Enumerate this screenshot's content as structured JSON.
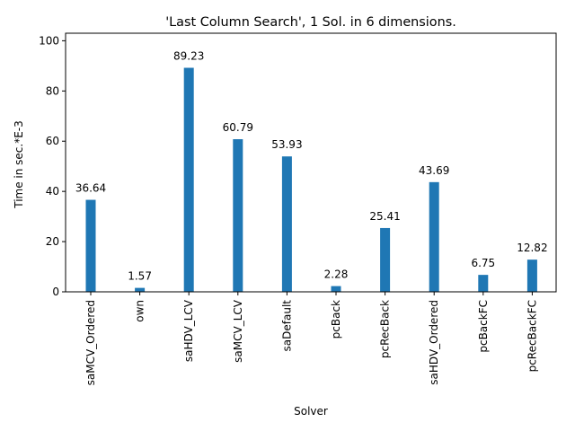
{
  "chart_data": {
    "type": "bar",
    "title": "'Last Column Search', 1 Sol. in 6 dimensions.",
    "xlabel": "Solver",
    "ylabel": "Time in sec.*E-3",
    "categories": [
      "saMCV_Ordered",
      "own",
      "saHDV_LCV",
      "saMCV_LCV",
      "saDefault",
      "pcBack",
      "pcRecBack",
      "saHDV_Ordered",
      "pcBackFC",
      "pcRecBackFC"
    ],
    "values": [
      36.64,
      1.57,
      89.23,
      60.79,
      53.93,
      2.28,
      25.41,
      43.69,
      6.75,
      12.82
    ],
    "data_labels": [
      "36.64",
      "1.57",
      "89.23",
      "60.79",
      "53.93",
      "2.28",
      "25.41",
      "43.69",
      "6.75",
      "12.82"
    ],
    "ylim": [
      0,
      103
    ],
    "yticks": [
      0,
      20,
      40,
      60,
      80,
      100
    ],
    "grid": false,
    "bar_color": "#1f77b4"
  }
}
